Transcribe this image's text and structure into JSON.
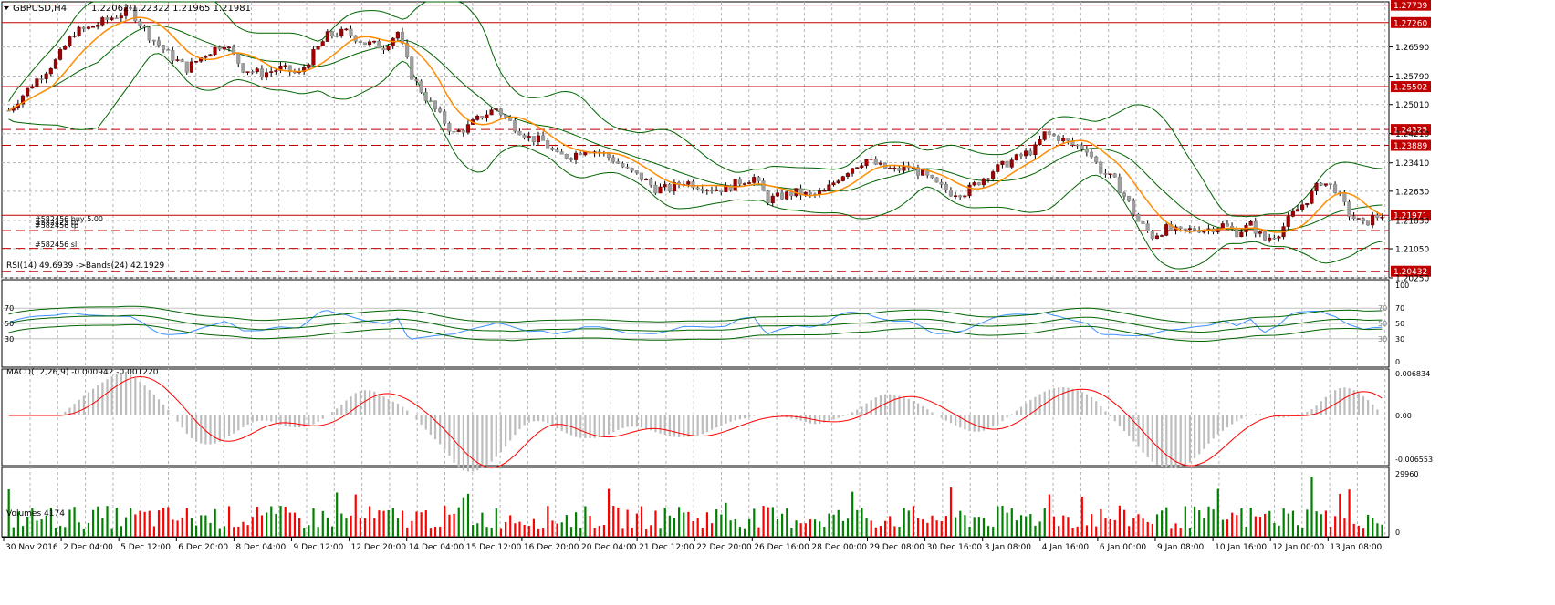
{
  "header": {
    "symbol": "GBPUSD,H4",
    "ohlc": "1.22062 1.22322 1.21965 1.21981"
  },
  "main": {
    "price_axis": [
      "1.26590",
      "1.25790",
      "1.25010",
      "1.24210",
      "1.23410",
      "1.22630",
      "1.21830",
      "1.21050",
      "1.20250"
    ],
    "price_range": [
      1.2025,
      1.2783
    ],
    "hlines": [
      {
        "price": 1.27739,
        "label": "1.27739",
        "style": "solid",
        "color": "#c00000"
      },
      {
        "price": 1.2726,
        "label": "1.27260",
        "style": "solid",
        "color": "#c00000"
      },
      {
        "price": 1.25502,
        "label": "1.25502",
        "style": "solid",
        "color": "#c00000"
      },
      {
        "price": 1.24325,
        "label": "1.24325",
        "style": "dash",
        "color": "#c00000"
      },
      {
        "price": 1.23889,
        "label": "1.23889",
        "style": "dash",
        "color": "#c00000"
      },
      {
        "price": 1.21971,
        "label": "1.21971",
        "style": "solid",
        "color": "#c00000"
      },
      {
        "price": 1.2155,
        "label": "",
        "style": "dash",
        "color": "#c00000"
      },
      {
        "price": 1.2106,
        "label": "",
        "style": "dash",
        "color": "#c00000"
      },
      {
        "price": 1.20432,
        "label": "1.20432",
        "style": "dash",
        "color": "#c00000"
      }
    ],
    "orders": [
      {
        "label": "#582456 buy 5.00",
        "price": 1.2188
      },
      {
        "label": "#582425 tp",
        "price": 1.2177
      },
      {
        "label": "#582456 tp",
        "price": 1.217
      },
      {
        "label": "#582456 sl",
        "price": 1.2117
      }
    ]
  },
  "rsi": {
    "label": "RSI(14) 49.6939  ->Bands(24) 42.1929",
    "left_levels": [
      "70",
      "50",
      "30"
    ],
    "axis": [
      "100",
      "70",
      "50",
      "30",
      "0"
    ]
  },
  "macd": {
    "label": "MACD(12,26,9) -0.000942 -0.001220",
    "axis": [
      "0.006834",
      "0.00",
      "-0.006553"
    ]
  },
  "volumes": {
    "label": "Volumes 4174",
    "axis": [
      "29960",
      "0"
    ]
  },
  "time_axis": [
    "30 Nov 2016",
    "2 Dec 04:00",
    "5 Dec 12:00",
    "6 Dec 20:00",
    "8 Dec 04:00",
    "9 Dec 12:00",
    "12 Dec 20:00",
    "14 Dec 04:00",
    "15 Dec 12:00",
    "16 Dec 20:00",
    "20 Dec 04:00",
    "21 Dec 12:00",
    "22 Dec 20:00",
    "26 Dec 16:00",
    "28 Dec 00:00",
    "29 Dec 08:00",
    "30 Dec 16:00",
    "3 Jan 08:00",
    "4 Jan 16:00",
    "6 Jan 00:00",
    "9 Jan 08:00",
    "10 Jan 16:00",
    "12 Jan 00:00",
    "13 Jan 08:00"
  ],
  "chart_data": {
    "type": "candlestick",
    "symbol": "GBPUSD",
    "timeframe": "H4",
    "close_path": [
      [
        0,
        1.2485
      ],
      [
        6,
        1.257
      ],
      [
        10,
        1.262
      ],
      [
        14,
        1.27
      ],
      [
        17,
        1.271
      ],
      [
        22,
        1.274
      ],
      [
        26,
        1.276
      ],
      [
        30,
        1.269
      ],
      [
        34,
        1.264
      ],
      [
        38,
        1.26
      ],
      [
        42,
        1.264
      ],
      [
        46,
        1.267
      ],
      [
        50,
        1.26
      ],
      [
        54,
        1.2585
      ],
      [
        58,
        1.26
      ],
      [
        62,
        1.2585
      ],
      [
        65,
        1.264
      ],
      [
        68,
        1.269
      ],
      [
        72,
        1.27
      ],
      [
        76,
        1.267
      ],
      [
        80,
        1.266
      ],
      [
        83,
        1.27
      ],
      [
        86,
        1.258
      ],
      [
        89,
        1.252
      ],
      [
        92,
        1.247
      ],
      [
        95,
        1.242
      ],
      [
        98,
        1.244
      ],
      [
        101,
        1.247
      ],
      [
        104,
        1.249
      ],
      [
        108,
        1.244
      ],
      [
        111,
        1.241
      ],
      [
        114,
        1.24
      ],
      [
        117,
        1.236
      ],
      [
        120,
        1.236
      ],
      [
        123,
        1.238
      ],
      [
        126,
        1.237
      ],
      [
        129,
        1.235
      ],
      [
        132,
        1.232
      ],
      [
        135,
        1.23
      ],
      [
        138,
        1.227
      ],
      [
        141,
        1.227
      ],
      [
        144,
        1.229
      ],
      [
        147,
        1.228
      ],
      [
        150,
        1.227
      ],
      [
        153,
        1.227
      ],
      [
        156,
        1.229
      ],
      [
        159,
        1.23
      ],
      [
        162,
        1.224
      ],
      [
        165,
        1.225
      ],
      [
        168,
        1.226
      ],
      [
        171,
        1.225
      ],
      [
        174,
        1.226
      ],
      [
        177,
        1.23
      ],
      [
        180,
        1.233
      ],
      [
        183,
        1.235
      ],
      [
        186,
        1.233
      ],
      [
        189,
        1.232
      ],
      [
        192,
        1.233
      ],
      [
        195,
        1.231
      ],
      [
        198,
        1.228
      ],
      [
        201,
        1.226
      ],
      [
        204,
        1.226
      ],
      [
        207,
        1.229
      ],
      [
        210,
        1.232
      ],
      [
        213,
        1.234
      ],
      [
        216,
        1.236
      ],
      [
        219,
        1.238
      ],
      [
        221,
        1.242
      ],
      [
        224,
        1.241
      ],
      [
        227,
        1.239
      ],
      [
        230,
        1.238
      ],
      [
        233,
        1.232
      ],
      [
        236,
        1.229
      ],
      [
        239,
        1.223
      ],
      [
        241,
        1.218
      ],
      [
        244,
        1.214
      ],
      [
        247,
        1.216
      ],
      [
        250,
        1.215
      ],
      [
        253,
        1.216
      ],
      [
        256,
        1.216
      ],
      [
        259,
        1.217
      ],
      [
        262,
        1.215
      ],
      [
        265,
        1.217
      ],
      [
        268,
        1.213
      ],
      [
        271,
        1.215
      ],
      [
        274,
        1.22
      ],
      [
        277,
        1.224
      ],
      [
        280,
        1.229
      ],
      [
        283,
        1.227
      ],
      [
        286,
        1.22
      ],
      [
        289,
        1.217
      ],
      [
        291,
        1.219
      ],
      [
        293,
        1.2198
      ]
    ],
    "indicators": [
      "Moving Average",
      "Bollinger Bands",
      "RSI(14)",
      "MACD(12,26,9)",
      "Volumes"
    ],
    "last": {
      "open": 1.22062,
      "high": 1.22322,
      "low": 1.21965,
      "close": 1.21981
    },
    "rsi_last": 49.6939,
    "rsi_bands": 42.1929,
    "macd_last": -0.000942,
    "macd_signal": -0.00122,
    "volume_last": 4174,
    "colors": {
      "up": "#a00000",
      "up_wick": "#000000",
      "down": "#a0a0a0",
      "ma": "#ff8c00",
      "bands": "#006400",
      "rsi": "#3a8fff",
      "macd_hist": "#bdbdbd",
      "macd_signal": "#ff0000",
      "vol_up": "#008000",
      "vol_down": "#ff0000"
    }
  }
}
